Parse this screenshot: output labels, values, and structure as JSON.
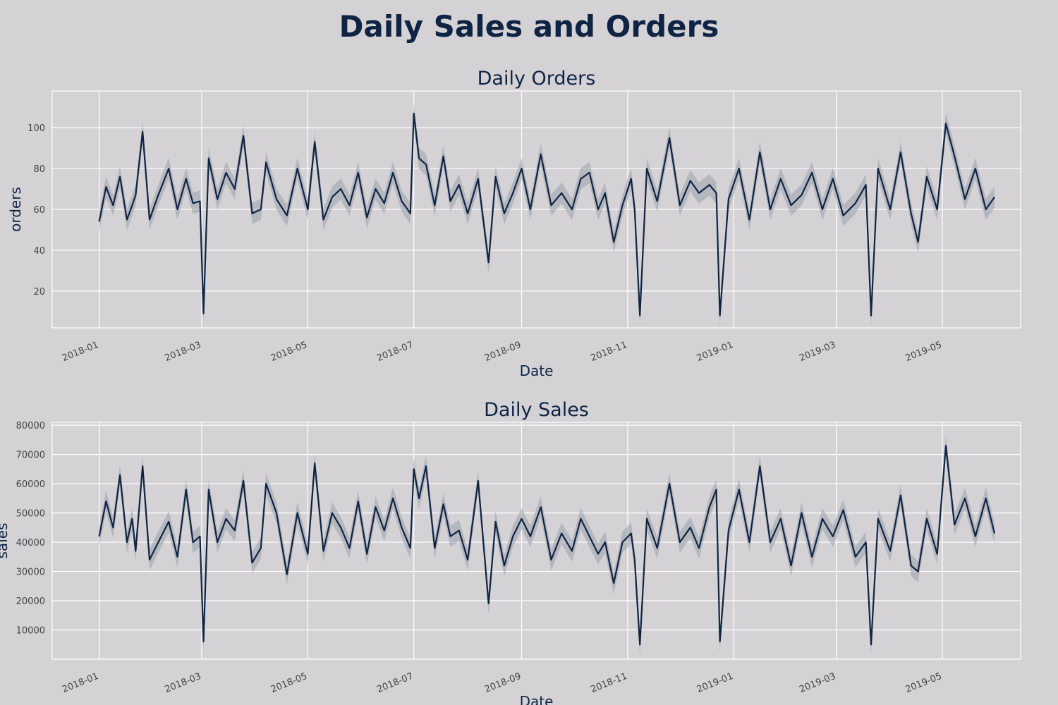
{
  "page_title": "Daily Sales and Orders",
  "colors": {
    "background": "#d4d2d5",
    "line": "#0f2443",
    "band": "#9aa0ad",
    "grid": "#ffffff"
  },
  "chart_data": [
    {
      "type": "line",
      "title": "Daily Orders",
      "xlabel": "Date",
      "ylabel": "orders",
      "x_ticks": [
        "2018-01",
        "2018-03",
        "2018-05",
        "2018-07",
        "2018-09",
        "2018-11",
        "2019-01",
        "2019-03",
        "2019-05"
      ],
      "y_ticks": [
        20,
        40,
        60,
        80,
        100
      ],
      "ylim": [
        2,
        118
      ],
      "xlim": [
        "2017-12-05",
        "2019-06-15"
      ],
      "grid": true,
      "series": [
        {
          "x": [
            "2018-01-01",
            "2018-01-05",
            "2018-01-09",
            "2018-01-13",
            "2018-01-17",
            "2018-01-20",
            "2018-01-22",
            "2018-01-26",
            "2018-01-30",
            "2018-02-04",
            "2018-02-10",
            "2018-02-15",
            "2018-02-20",
            "2018-02-24",
            "2018-02-28",
            "2018-03-02",
            "2018-03-05",
            "2018-03-10",
            "2018-03-15",
            "2018-03-20",
            "2018-03-25",
            "2018-03-30",
            "2018-04-04",
            "2018-04-07",
            "2018-04-13",
            "2018-04-19",
            "2018-04-25",
            "2018-05-01",
            "2018-05-05",
            "2018-05-10",
            "2018-05-15",
            "2018-05-20",
            "2018-05-25",
            "2018-05-30",
            "2018-06-04",
            "2018-06-09",
            "2018-06-14",
            "2018-06-19",
            "2018-06-24",
            "2018-06-29",
            "2018-07-01",
            "2018-07-04",
            "2018-07-08",
            "2018-07-13",
            "2018-07-18",
            "2018-07-22",
            "2018-07-27",
            "2018-08-01",
            "2018-08-07",
            "2018-08-13",
            "2018-08-17",
            "2018-08-22",
            "2018-08-27",
            "2018-09-01",
            "2018-09-06",
            "2018-09-12",
            "2018-09-18",
            "2018-09-24",
            "2018-09-30",
            "2018-10-05",
            "2018-10-10",
            "2018-10-15",
            "2018-10-19",
            "2018-10-24",
            "2018-10-29",
            "2018-11-03",
            "2018-11-05",
            "2018-11-08",
            "2018-11-12",
            "2018-11-18",
            "2018-11-25",
            "2018-12-01",
            "2018-12-07",
            "2018-12-12",
            "2018-12-18",
            "2018-12-22",
            "2018-12-24",
            "2018-12-29",
            "2019-01-04",
            "2019-01-10",
            "2019-01-16",
            "2019-01-22",
            "2019-01-28",
            "2019-02-03",
            "2019-02-09",
            "2019-02-15",
            "2019-02-21",
            "2019-02-27",
            "2019-03-05",
            "2019-03-12",
            "2019-03-18",
            "2019-03-21",
            "2019-03-25",
            "2019-04-01",
            "2019-04-07",
            "2019-04-13",
            "2019-04-17",
            "2019-04-22",
            "2019-04-28",
            "2019-05-03",
            "2019-05-08",
            "2019-05-14",
            "2019-05-20",
            "2019-05-26",
            "2019-05-31"
          ],
          "y": [
            54,
            71,
            62,
            76,
            55,
            62,
            67,
            98,
            55,
            67,
            80,
            60,
            75,
            63,
            64,
            9,
            85,
            65,
            78,
            70,
            96,
            58,
            60,
            83,
            65,
            57,
            80,
            60,
            93,
            55,
            66,
            70,
            62,
            78,
            56,
            70,
            63,
            78,
            64,
            58,
            107,
            85,
            82,
            62,
            86,
            64,
            72,
            58,
            75,
            34,
            76,
            58,
            68,
            80,
            60,
            87,
            62,
            68,
            60,
            75,
            78,
            60,
            68,
            44,
            62,
            75,
            60,
            8,
            80,
            64,
            95,
            62,
            74,
            68,
            72,
            68,
            8,
            65,
            80,
            55,
            88,
            60,
            75,
            62,
            67,
            78,
            60,
            75,
            57,
            63,
            72,
            8,
            80,
            60,
            88,
            58,
            44,
            76,
            60,
            102,
            86,
            65,
            80,
            60,
            66
          ]
        }
      ]
    },
    {
      "type": "line",
      "title": "Daily Sales",
      "xlabel": "Date",
      "ylabel": "sales",
      "x_ticks": [
        "2018-01",
        "2018-03",
        "2018-05",
        "2018-07",
        "2018-09",
        "2018-11",
        "2019-01",
        "2019-03",
        "2019-05"
      ],
      "y_ticks": [
        10000,
        20000,
        30000,
        40000,
        50000,
        60000,
        70000,
        80000
      ],
      "ylim": [
        0,
        81000
      ],
      "xlim": [
        "2017-12-05",
        "2019-06-15"
      ],
      "grid": true,
      "series": [
        {
          "x": [
            "2018-01-01",
            "2018-01-05",
            "2018-01-09",
            "2018-01-13",
            "2018-01-17",
            "2018-01-20",
            "2018-01-22",
            "2018-01-26",
            "2018-01-30",
            "2018-02-04",
            "2018-02-10",
            "2018-02-15",
            "2018-02-20",
            "2018-02-24",
            "2018-02-28",
            "2018-03-02",
            "2018-03-05",
            "2018-03-10",
            "2018-03-15",
            "2018-03-20",
            "2018-03-25",
            "2018-03-30",
            "2018-04-04",
            "2018-04-07",
            "2018-04-13",
            "2018-04-19",
            "2018-04-25",
            "2018-05-01",
            "2018-05-05",
            "2018-05-10",
            "2018-05-15",
            "2018-05-20",
            "2018-05-25",
            "2018-05-30",
            "2018-06-04",
            "2018-06-09",
            "2018-06-14",
            "2018-06-19",
            "2018-06-24",
            "2018-06-29",
            "2018-07-01",
            "2018-07-04",
            "2018-07-08",
            "2018-07-13",
            "2018-07-18",
            "2018-07-22",
            "2018-07-27",
            "2018-08-01",
            "2018-08-07",
            "2018-08-13",
            "2018-08-17",
            "2018-08-22",
            "2018-08-27",
            "2018-09-01",
            "2018-09-06",
            "2018-09-12",
            "2018-09-18",
            "2018-09-24",
            "2018-09-30",
            "2018-10-05",
            "2018-10-10",
            "2018-10-15",
            "2018-10-19",
            "2018-10-24",
            "2018-10-29",
            "2018-11-03",
            "2018-11-05",
            "2018-11-08",
            "2018-11-12",
            "2018-11-18",
            "2018-11-25",
            "2018-12-01",
            "2018-12-07",
            "2018-12-12",
            "2018-12-18",
            "2018-12-22",
            "2018-12-24",
            "2018-12-29",
            "2019-01-04",
            "2019-01-10",
            "2019-01-16",
            "2019-01-22",
            "2019-01-28",
            "2019-02-03",
            "2019-02-09",
            "2019-02-15",
            "2019-02-21",
            "2019-02-27",
            "2019-03-05",
            "2019-03-12",
            "2019-03-18",
            "2019-03-21",
            "2019-03-25",
            "2019-04-01",
            "2019-04-07",
            "2019-04-13",
            "2019-04-17",
            "2019-04-22",
            "2019-04-28",
            "2019-05-03",
            "2019-05-08",
            "2019-05-14",
            "2019-05-20",
            "2019-05-26",
            "2019-05-31"
          ],
          "y": [
            42000,
            54000,
            45000,
            63000,
            40000,
            48000,
            37000,
            66000,
            34000,
            40000,
            47000,
            35000,
            58000,
            40000,
            42000,
            6000,
            58000,
            40000,
            48000,
            44000,
            61000,
            33000,
            38000,
            60000,
            50000,
            29000,
            50000,
            36000,
            67000,
            37000,
            50000,
            45000,
            38000,
            54000,
            36000,
            52000,
            44000,
            55000,
            45000,
            38000,
            65000,
            55000,
            66000,
            38000,
            53000,
            42000,
            44000,
            34000,
            61000,
            19000,
            47000,
            32000,
            42000,
            48000,
            42000,
            52000,
            34000,
            43000,
            37000,
            48000,
            42000,
            36000,
            40000,
            26000,
            40000,
            43000,
            34000,
            5000,
            48000,
            38000,
            60000,
            40000,
            45000,
            38000,
            52000,
            58000,
            6000,
            44000,
            58000,
            40000,
            66000,
            40000,
            48000,
            32000,
            50000,
            35000,
            48000,
            42000,
            51000,
            35000,
            40000,
            5000,
            48000,
            37000,
            56000,
            32000,
            30000,
            48000,
            36000,
            73000,
            46000,
            55000,
            42000,
            55000,
            43000
          ]
        }
      ]
    }
  ]
}
